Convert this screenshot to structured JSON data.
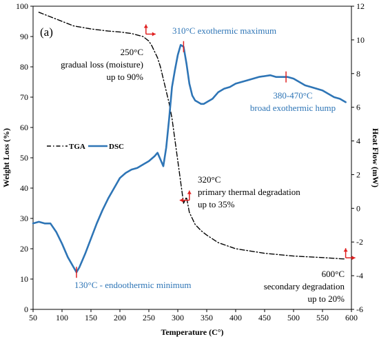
{
  "chart_data": {
    "type": "line",
    "panel_label": "(a)",
    "xlabel": "Temperature (C°)",
    "ylabel_left": "Weight Loss (%)",
    "ylabel_right": "Heat Flow (mW)",
    "xlim": [
      50,
      600
    ],
    "ylim_left": [
      0,
      100
    ],
    "ylim_right": [
      -6,
      12
    ],
    "x_ticks": [
      50,
      100,
      150,
      200,
      250,
      300,
      350,
      400,
      450,
      500,
      550,
      600
    ],
    "y_left_ticks": [
      0,
      10,
      20,
      30,
      40,
      50,
      60,
      70,
      80,
      90,
      100
    ],
    "y_right_ticks": [
      -6,
      -4,
      -2,
      0,
      2,
      4,
      6,
      8,
      10,
      12
    ],
    "legend_position": "middle-left",
    "series": [
      {
        "name": "TGA",
        "axis": "left",
        "color": "#000000",
        "style": "dash-dot",
        "x": [
          60,
          80,
          100,
          120,
          150,
          180,
          200,
          220,
          240,
          250,
          255,
          260,
          265,
          270,
          275,
          280,
          285,
          290,
          295,
          300,
          305,
          310,
          315,
          320,
          325,
          330,
          340,
          350,
          370,
          400,
          450,
          500,
          550,
          590
        ],
        "y": [
          98,
          96.5,
          95,
          93.5,
          92.5,
          91.8,
          91.5,
          91,
          90,
          88.5,
          87,
          85,
          83,
          80,
          76,
          72,
          68,
          63,
          56,
          49,
          42,
          35,
          37,
          32,
          30,
          28,
          26,
          24.5,
          22,
          20,
          18.5,
          17.6,
          17.1,
          16.6
        ]
      },
      {
        "name": "DSC",
        "axis": "right",
        "color": "#2e75b6",
        "style": "solid",
        "x": [
          50,
          60,
          70,
          80,
          90,
          100,
          110,
          120,
          125,
          130,
          140,
          150,
          160,
          170,
          180,
          190,
          200,
          210,
          220,
          230,
          240,
          250,
          260,
          265,
          270,
          275,
          280,
          285,
          290,
          295,
          300,
          305,
          310,
          315,
          320,
          325,
          330,
          335,
          340,
          345,
          350,
          360,
          370,
          380,
          390,
          400,
          420,
          440,
          460,
          470,
          480,
          490,
          500,
          510,
          520,
          530,
          540,
          550,
          560,
          570,
          580,
          590
        ],
        "y": [
          -0.9,
          -0.8,
          -0.9,
          -0.9,
          -1.4,
          -2.1,
          -2.9,
          -3.5,
          -3.8,
          -3.5,
          -2.7,
          -1.8,
          -0.9,
          -0.1,
          0.6,
          1.2,
          1.8,
          2.1,
          2.3,
          2.4,
          2.6,
          2.8,
          3.1,
          3.3,
          2.9,
          2.5,
          3.6,
          5.3,
          7.2,
          8.2,
          9.1,
          9.7,
          9.6,
          8.6,
          7.4,
          6.7,
          6.4,
          6.3,
          6.2,
          6.2,
          6.3,
          6.5,
          6.9,
          7.1,
          7.2,
          7.4,
          7.6,
          7.8,
          7.9,
          7.8,
          7.8,
          7.8,
          7.7,
          7.5,
          7.3,
          7.2,
          7.1,
          7.0,
          6.8,
          6.6,
          6.5,
          6.3
        ]
      }
    ],
    "annotations": [
      {
        "lines": [
          "250°C",
          "gradual loss (moisture)",
          "up to 90%"
        ],
        "color": "#000000"
      },
      {
        "lines": [
          "310°C  exothermic maximum"
        ],
        "color": "#2e75b6"
      },
      {
        "lines": [
          "380-470°C",
          "broad exothermic hump"
        ],
        "color": "#2e75b6"
      },
      {
        "lines": [
          "320°C",
          "primary thermal degradation",
          "up to 35%"
        ],
        "color": "#000000"
      },
      {
        "lines": [
          "130°C - endoothermic minimum"
        ],
        "color": "#2e75b6"
      },
      {
        "lines": [
          "600°C",
          "secondary degradation",
          "up to 20%"
        ],
        "color": "#000000"
      }
    ],
    "marker_color": "#e02020"
  }
}
